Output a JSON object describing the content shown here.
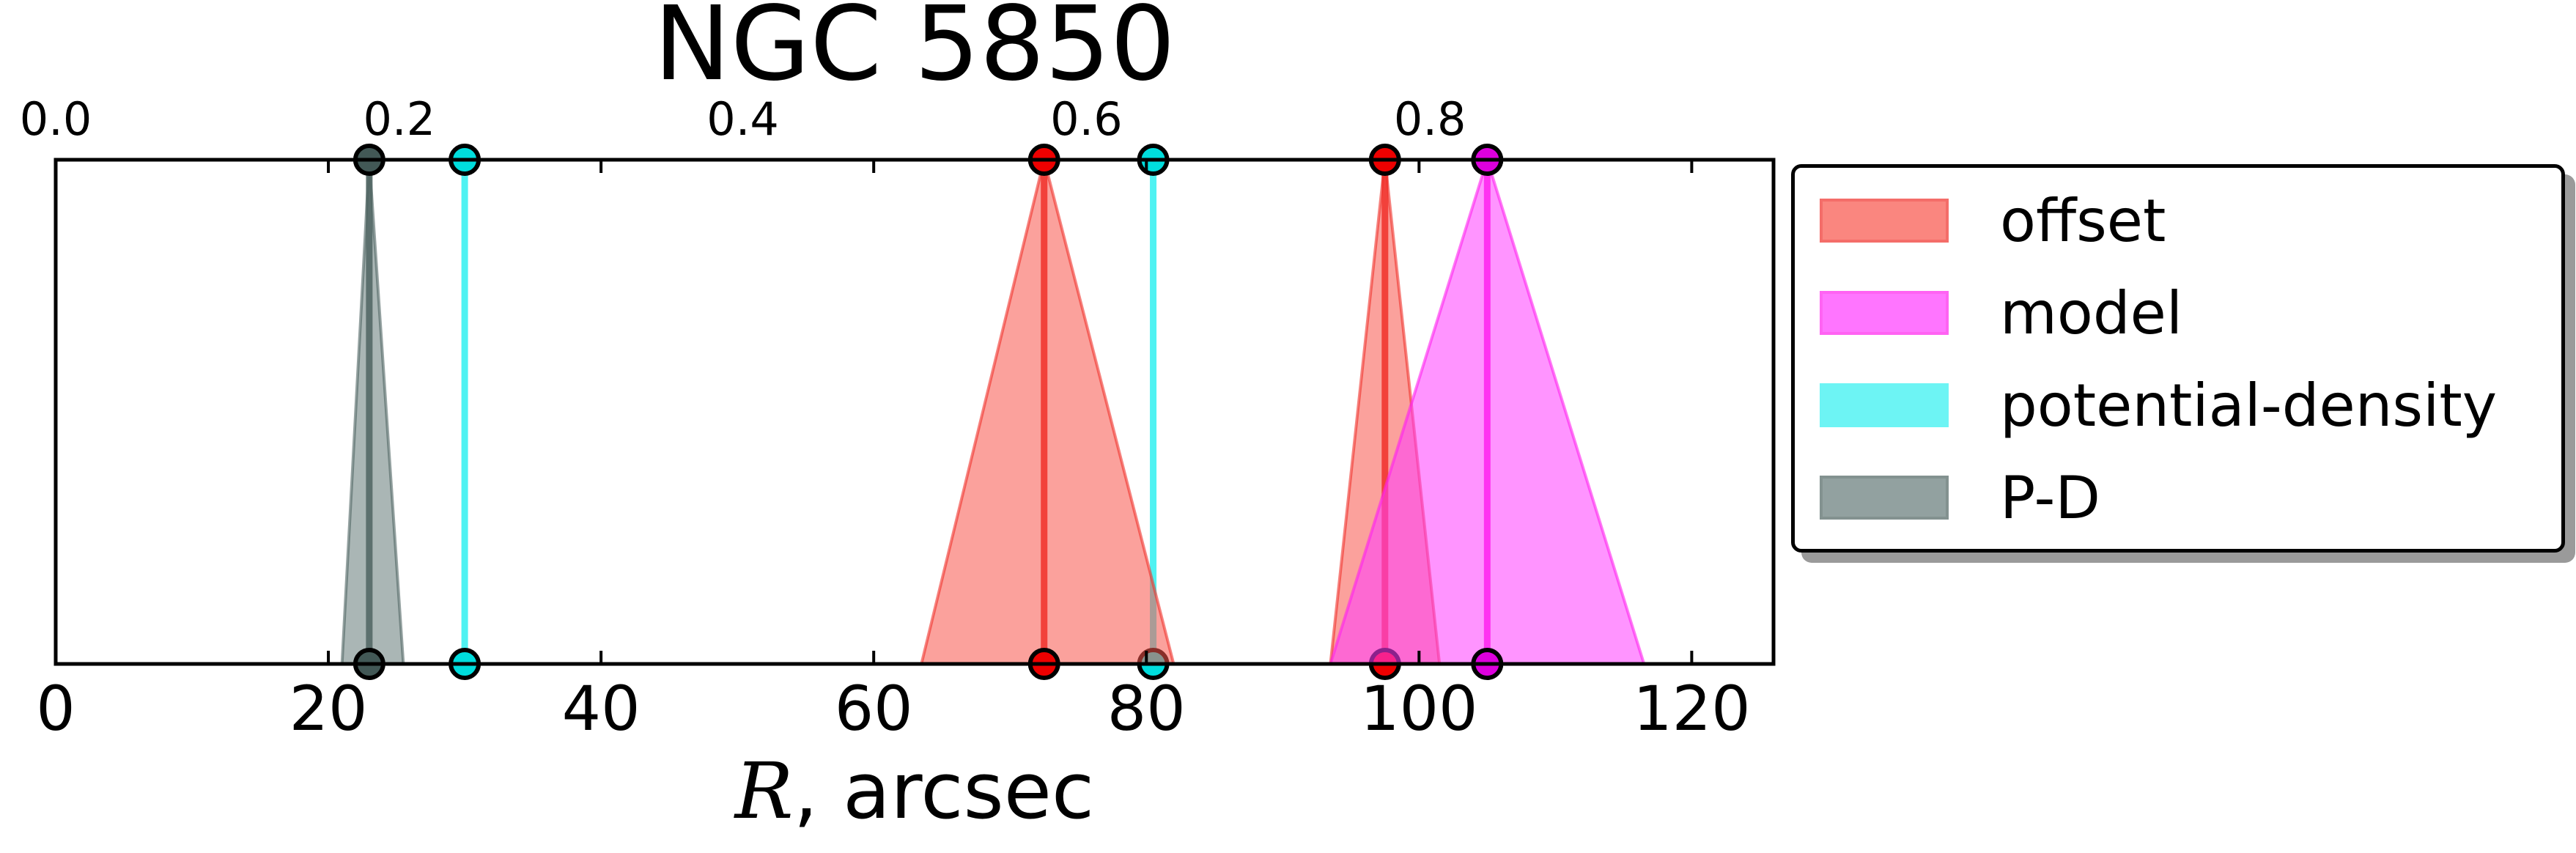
{
  "chart_data": {
    "type": "area",
    "title": "NGC 5850",
    "xlabel_var": "R",
    "xlabel_rest": ", arcsec",
    "xlim": [
      0,
      126
    ],
    "xticks": [
      "0",
      "20",
      "40",
      "60",
      "80",
      "100",
      "120"
    ],
    "top_axis": {
      "lim": [
        0.0,
        1.0
      ],
      "ticks": [
        "0.0",
        "0.2",
        "0.4",
        "0.6",
        "0.8"
      ]
    },
    "legend_placement": "outside-right",
    "grid": false,
    "series": [
      {
        "name": "offset",
        "color": "#f8544a",
        "line_color": "#f0302a",
        "marker_color": "#ee0000",
        "peaks": [
          {
            "x": 72.5,
            "left": 63.5,
            "right": 82.0
          },
          {
            "x": 97.5,
            "left": 93.5,
            "right": 101.5
          }
        ]
      },
      {
        "name": "model",
        "color": "#ff3cff",
        "line_color": "#ff22ee",
        "marker_color": "#dd00dd",
        "peaks": [
          {
            "x": 105.0,
            "left": 93.5,
            "right": 116.5
          }
        ]
      },
      {
        "name": "potential-density",
        "color": "#30f0f0",
        "line_color": "#30f0f0",
        "marker_color": "#00dddd",
        "peaks": [
          {
            "x": 30.0,
            "left": 30.0,
            "right": 30.0
          },
          {
            "x": 80.5,
            "left": 80.5,
            "right": 80.5
          }
        ]
      },
      {
        "name": "P-D",
        "color": "#647a78",
        "line_color": "#4f6462",
        "marker_color": "#425856",
        "peaks": [
          {
            "x": 23.0,
            "left": 21.0,
            "right": 25.5
          }
        ]
      }
    ]
  }
}
